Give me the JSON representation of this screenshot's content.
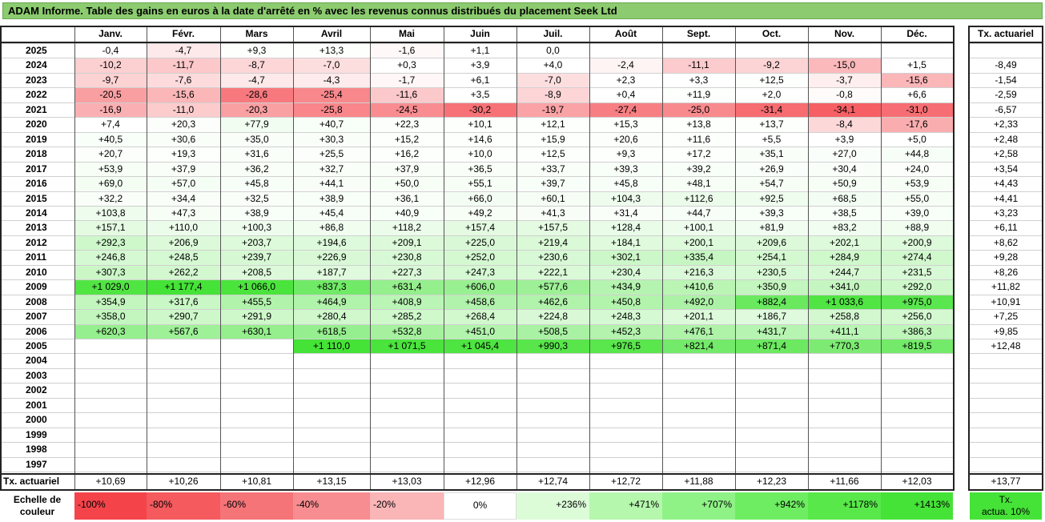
{
  "title": "ADAM Informe. Table des gains en euros à la date d'arrêté en % avec les revenus connus distribués du placement Seek Ltd",
  "months": [
    "Janv.",
    "Févr.",
    "Mars",
    "Avril",
    "Mai",
    "Juin",
    "Juil.",
    "Août",
    "Sept.",
    "Oct.",
    "Nov.",
    "Déc."
  ],
  "rate_header": "Tx. actuariel",
  "rows": [
    {
      "year": "2025",
      "values": [
        "-0,4",
        "-4,7",
        "+9,3",
        "+13,3",
        "-1,6",
        "+1,1",
        "0,0",
        "",
        "",
        "",
        "",
        ""
      ],
      "rate": ""
    },
    {
      "year": "2024",
      "values": [
        "-10,2",
        "-11,7",
        "-8,7",
        "-7,0",
        "+0,3",
        "+3,9",
        "+4,0",
        "-2,4",
        "-11,1",
        "-9,2",
        "-15,0",
        "+1,5"
      ],
      "rate": "-8,49"
    },
    {
      "year": "2023",
      "values": [
        "-9,7",
        "-7,6",
        "-4,7",
        "-4,3",
        "-1,7",
        "+6,1",
        "-7,0",
        "+2,3",
        "+3,3",
        "+12,5",
        "-3,7",
        "-15,6"
      ],
      "rate": "-1,54"
    },
    {
      "year": "2022",
      "values": [
        "-20,5",
        "-15,6",
        "-28,6",
        "-25,4",
        "-11,6",
        "+3,5",
        "-8,9",
        "+0,4",
        "+11,9",
        "+2,0",
        "-0,8",
        "+6,6"
      ],
      "rate": "-2,59"
    },
    {
      "year": "2021",
      "values": [
        "-16,9",
        "-11,0",
        "-20,3",
        "-25,8",
        "-24,5",
        "-30,2",
        "-19,7",
        "-27,4",
        "-25,0",
        "-31,4",
        "-34,1",
        "-31,0"
      ],
      "rate": "-6,57"
    },
    {
      "year": "2020",
      "values": [
        "+7,4",
        "+20,3",
        "+77,9",
        "+40,7",
        "+22,3",
        "+10,1",
        "+12,1",
        "+15,3",
        "+13,8",
        "+13,7",
        "-8,4",
        "-17,6"
      ],
      "rate": "+2,33"
    },
    {
      "year": "2019",
      "values": [
        "+40,5",
        "+30,6",
        "+35,0",
        "+30,3",
        "+15,2",
        "+14,6",
        "+15,9",
        "+20,6",
        "+11,6",
        "+5,5",
        "+3,9",
        "+5,0"
      ],
      "rate": "+2,48"
    },
    {
      "year": "2018",
      "values": [
        "+20,7",
        "+19,3",
        "+31,6",
        "+25,5",
        "+16,2",
        "+10,0",
        "+12,5",
        "+9,3",
        "+17,2",
        "+35,1",
        "+27,0",
        "+44,8"
      ],
      "rate": "+2,58"
    },
    {
      "year": "2017",
      "values": [
        "+53,9",
        "+37,9",
        "+36,2",
        "+32,7",
        "+37,9",
        "+36,5",
        "+33,7",
        "+39,3",
        "+39,2",
        "+26,9",
        "+30,4",
        "+24,0"
      ],
      "rate": "+3,54"
    },
    {
      "year": "2016",
      "values": [
        "+69,0",
        "+57,0",
        "+45,8",
        "+44,1",
        "+50,0",
        "+55,1",
        "+39,7",
        "+45,8",
        "+48,1",
        "+54,7",
        "+50,9",
        "+53,9"
      ],
      "rate": "+4,43"
    },
    {
      "year": "2015",
      "values": [
        "+32,2",
        "+34,4",
        "+32,5",
        "+38,9",
        "+36,1",
        "+66,0",
        "+60,1",
        "+104,3",
        "+112,6",
        "+92,5",
        "+68,5",
        "+55,0"
      ],
      "rate": "+4,41"
    },
    {
      "year": "2014",
      "values": [
        "+103,8",
        "+47,3",
        "+38,9",
        "+45,4",
        "+40,9",
        "+49,2",
        "+41,3",
        "+31,4",
        "+44,7",
        "+39,3",
        "+38,5",
        "+39,0"
      ],
      "rate": "+3,23"
    },
    {
      "year": "2013",
      "values": [
        "+157,1",
        "+110,0",
        "+100,3",
        "+86,8",
        "+118,2",
        "+157,4",
        "+157,5",
        "+128,4",
        "+100,1",
        "+81,9",
        "+83,2",
        "+88,9"
      ],
      "rate": "+6,11"
    },
    {
      "year": "2012",
      "values": [
        "+292,3",
        "+206,9",
        "+203,7",
        "+194,6",
        "+209,1",
        "+225,0",
        "+219,4",
        "+184,1",
        "+200,1",
        "+209,6",
        "+202,1",
        "+200,9"
      ],
      "rate": "+8,62"
    },
    {
      "year": "2011",
      "values": [
        "+246,8",
        "+248,5",
        "+239,7",
        "+226,9",
        "+230,8",
        "+252,0",
        "+230,6",
        "+302,1",
        "+335,4",
        "+254,1",
        "+284,9",
        "+274,4"
      ],
      "rate": "+9,28"
    },
    {
      "year": "2010",
      "values": [
        "+307,3",
        "+262,2",
        "+208,5",
        "+187,7",
        "+227,3",
        "+247,3",
        "+222,1",
        "+230,4",
        "+216,3",
        "+230,5",
        "+244,7",
        "+231,5"
      ],
      "rate": "+8,26"
    },
    {
      "year": "2009",
      "values": [
        "+1 029,0",
        "+1 177,4",
        "+1 066,0",
        "+837,3",
        "+631,4",
        "+606,0",
        "+577,6",
        "+434,9",
        "+410,6",
        "+350,9",
        "+341,0",
        "+292,0"
      ],
      "rate": "+11,82"
    },
    {
      "year": "2008",
      "values": [
        "+354,9",
        "+317,6",
        "+455,5",
        "+464,9",
        "+408,9",
        "+458,6",
        "+462,6",
        "+450,8",
        "+492,0",
        "+882,4",
        "+1 033,6",
        "+975,0"
      ],
      "rate": "+10,91"
    },
    {
      "year": "2007",
      "values": [
        "+358,0",
        "+290,7",
        "+291,9",
        "+280,4",
        "+285,2",
        "+268,4",
        "+224,8",
        "+248,3",
        "+201,1",
        "+186,7",
        "+258,8",
        "+256,0"
      ],
      "rate": "+7,25"
    },
    {
      "year": "2006",
      "values": [
        "+620,3",
        "+567,6",
        "+630,1",
        "+618,5",
        "+532,8",
        "+451,0",
        "+508,5",
        "+452,3",
        "+476,1",
        "+431,7",
        "+411,1",
        "+386,3"
      ],
      "rate": "+9,85"
    },
    {
      "year": "2005",
      "values": [
        "",
        "",
        "",
        "+1 110,0",
        "+1 071,5",
        "+1 045,4",
        "+990,3",
        "+976,5",
        "+821,4",
        "+871,4",
        "+770,3",
        "+819,5"
      ],
      "rate": "+12,48"
    },
    {
      "year": "2004",
      "values": [
        "",
        "",
        "",
        "",
        "",
        "",
        "",
        "",
        "",
        "",
        "",
        ""
      ],
      "rate": ""
    },
    {
      "year": "2003",
      "values": [
        "",
        "",
        "",
        "",
        "",
        "",
        "",
        "",
        "",
        "",
        "",
        ""
      ],
      "rate": ""
    },
    {
      "year": "2002",
      "values": [
        "",
        "",
        "",
        "",
        "",
        "",
        "",
        "",
        "",
        "",
        "",
        ""
      ],
      "rate": ""
    },
    {
      "year": "2001",
      "values": [
        "",
        "",
        "",
        "",
        "",
        "",
        "",
        "",
        "",
        "",
        "",
        ""
      ],
      "rate": ""
    },
    {
      "year": "2000",
      "values": [
        "",
        "",
        "",
        "",
        "",
        "",
        "",
        "",
        "",
        "",
        "",
        ""
      ],
      "rate": ""
    },
    {
      "year": "1999",
      "values": [
        "",
        "",
        "",
        "",
        "",
        "",
        "",
        "",
        "",
        "",
        "",
        ""
      ],
      "rate": ""
    },
    {
      "year": "1998",
      "values": [
        "",
        "",
        "",
        "",
        "",
        "",
        "",
        "",
        "",
        "",
        "",
        ""
      ],
      "rate": ""
    },
    {
      "year": "1997",
      "values": [
        "",
        "",
        "",
        "",
        "",
        "",
        "",
        "",
        "",
        "",
        "",
        ""
      ],
      "rate": ""
    }
  ],
  "footer": {
    "label": "Tx. actuariel",
    "values": [
      "+10,69",
      "+10,26",
      "+10,81",
      "+13,15",
      "+13,03",
      "+12,96",
      "+12,74",
      "+12,72",
      "+11,88",
      "+12,23",
      "+11,66",
      "+12,03"
    ],
    "rate": "+13,77"
  },
  "legend": {
    "label_line1": "Echelle de",
    "label_line2": "couleur",
    "items": [
      {
        "text": "-100%",
        "color": "#f4444a",
        "align": "left"
      },
      {
        "text": "-80%",
        "color": "#f45a5e",
        "align": "left"
      },
      {
        "text": "-60%",
        "color": "#f57478",
        "align": "left"
      },
      {
        "text": "-40%",
        "color": "#f78d90",
        "align": "left"
      },
      {
        "text": "-20%",
        "color": "#fab5b7",
        "align": "left"
      },
      {
        "text": "0%",
        "color": "#ffffff",
        "align": "center"
      },
      {
        "text": "+236%",
        "color": "#dcfcd8",
        "align": "right"
      },
      {
        "text": "+471%",
        "color": "#b5f7ad",
        "align": "right"
      },
      {
        "text": "+707%",
        "color": "#8ff286",
        "align": "right"
      },
      {
        "text": "+942%",
        "color": "#6eed62",
        "align": "right"
      },
      {
        "text": "+1178%",
        "color": "#58e84a",
        "align": "right"
      },
      {
        "text": "+1413%",
        "color": "#45e337",
        "align": "right"
      }
    ],
    "rate_line1": "Tx.",
    "rate_line2": "actua. 10%",
    "rate_color": "#45e337"
  },
  "colors": {
    "title_bg": "#8ccb6f"
  }
}
